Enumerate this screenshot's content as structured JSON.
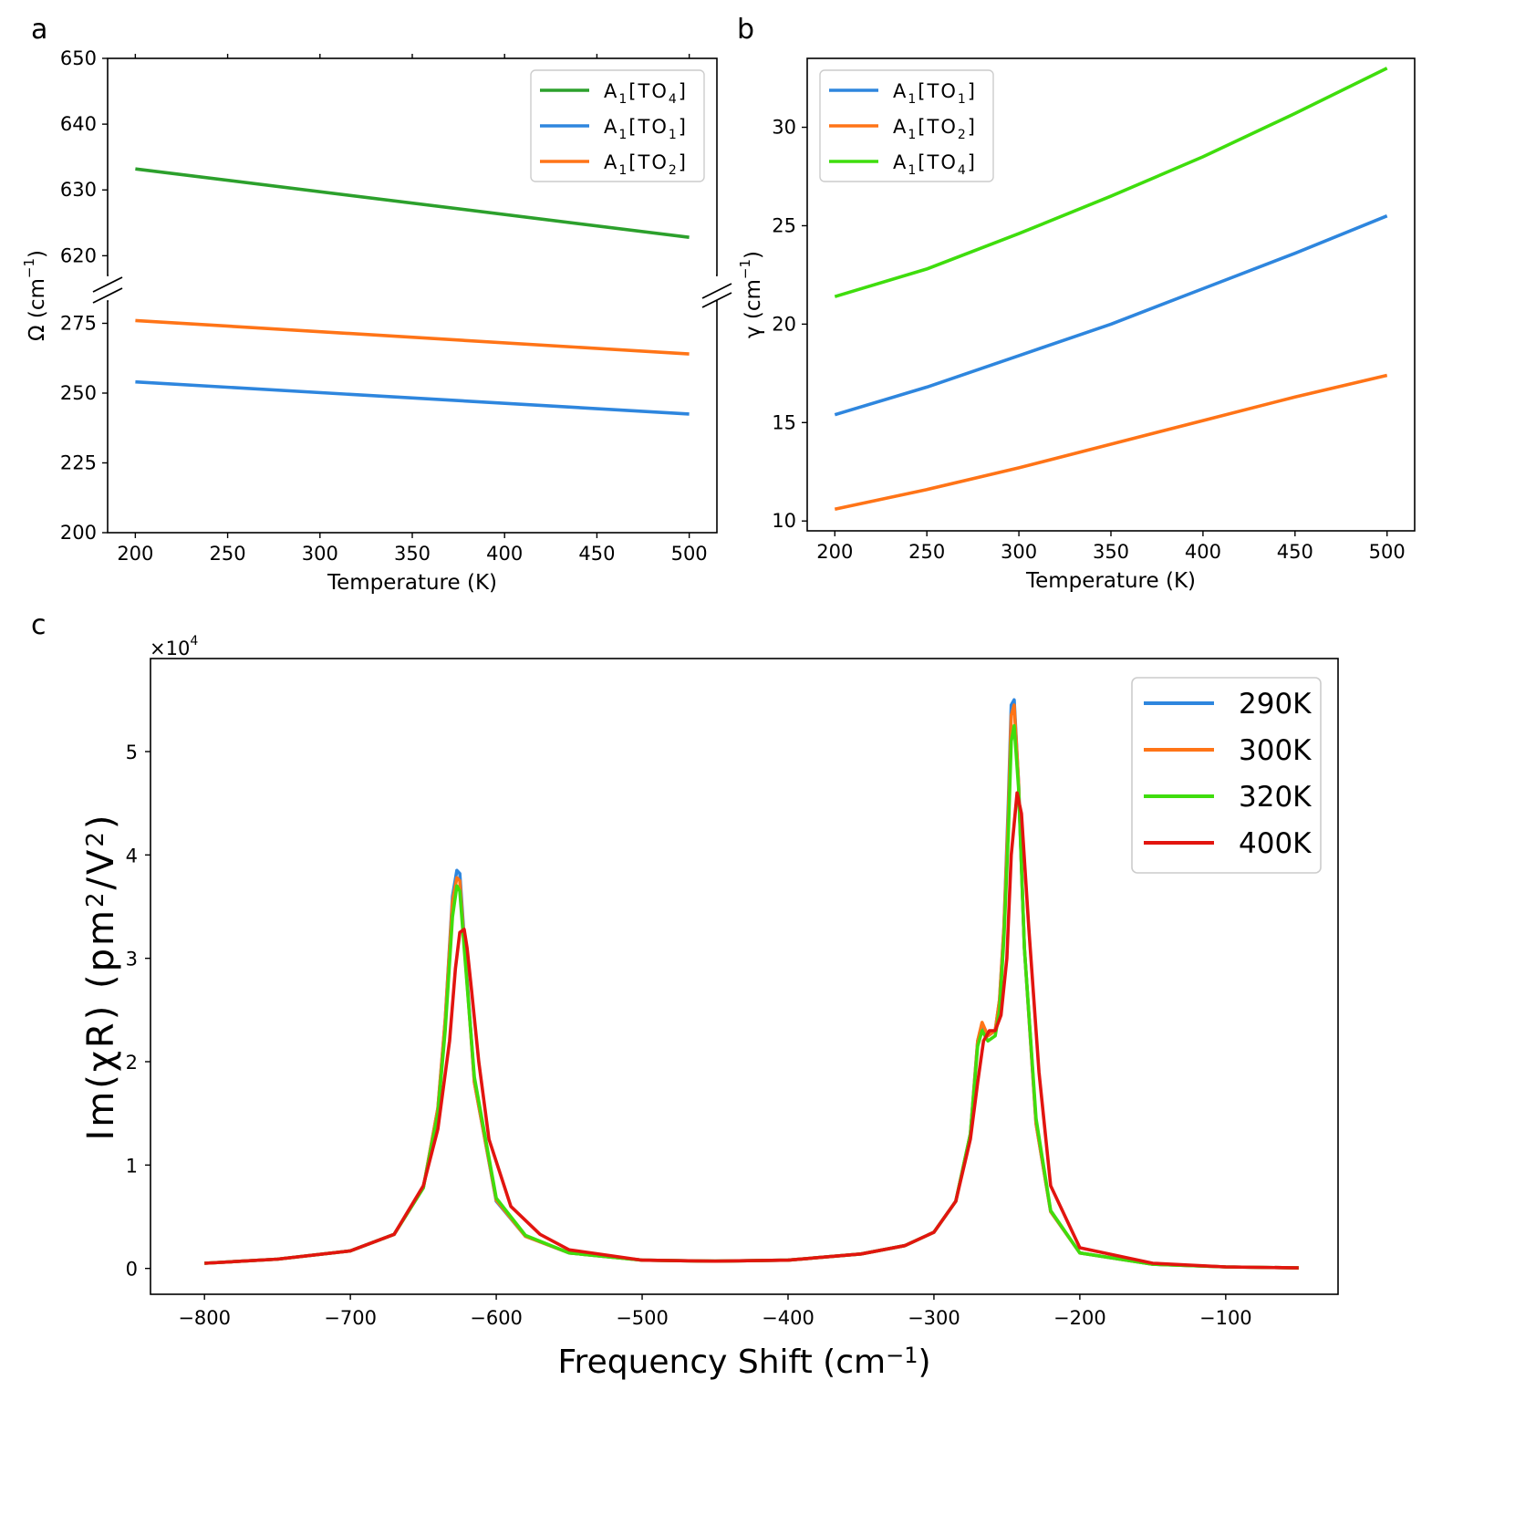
{
  "chart_data": [
    {
      "panel": "a",
      "type": "line",
      "xlabel": "Temperature (K)",
      "ylabel": "Ω (cm⁻¹)",
      "xlim": [
        185,
        515
      ],
      "x_ticks": [
        200,
        250,
        300,
        350,
        400,
        450,
        500
      ],
      "broken_y_axis": true,
      "ylim_upper": [
        617,
        650
      ],
      "ylim_lower": [
        200,
        283
      ],
      "y_ticks_upper": [
        620,
        630,
        640,
        650
      ],
      "y_ticks_lower": [
        200,
        225,
        250,
        275
      ],
      "legend_position": "top-right",
      "series": [
        {
          "name": "A₁[TO₄]",
          "color": "#2ca02c",
          "axis": "upper",
          "x": [
            200,
            500
          ],
          "y": [
            633.2,
            622.8
          ]
        },
        {
          "name": "A₁[TO₁]",
          "color": "#2e86de",
          "axis": "lower",
          "x": [
            200,
            500
          ],
          "y": [
            254.0,
            242.5
          ]
        },
        {
          "name": "A₁[TO₂]",
          "color": "#ff7417",
          "axis": "lower",
          "x": [
            200,
            500
          ],
          "y": [
            276.0,
            264.0
          ]
        }
      ]
    },
    {
      "panel": "b",
      "type": "line",
      "xlabel": "Temperature (K)",
      "ylabel": "γ (cm⁻¹)",
      "xlim": [
        185,
        515
      ],
      "ylim": [
        9.5,
        33.5
      ],
      "x_ticks": [
        200,
        250,
        300,
        350,
        400,
        450,
        500
      ],
      "y_ticks": [
        10,
        15,
        20,
        25,
        30
      ],
      "legend_position": "top-left",
      "series": [
        {
          "name": "A₁[TO₁]",
          "color": "#2e86de",
          "x": [
            200,
            250,
            300,
            350,
            400,
            450,
            500
          ],
          "y": [
            15.4,
            16.8,
            18.4,
            20.0,
            21.8,
            23.6,
            25.5
          ]
        },
        {
          "name": "A₁[TO₂]",
          "color": "#ff7417",
          "x": [
            200,
            250,
            300,
            350,
            400,
            450,
            500
          ],
          "y": [
            10.6,
            11.6,
            12.7,
            13.9,
            15.1,
            16.3,
            17.4
          ]
        },
        {
          "name": "A₁[TO₄]",
          "color": "#3fdd0d",
          "x": [
            200,
            250,
            300,
            350,
            400,
            450,
            500
          ],
          "y": [
            21.4,
            22.8,
            24.6,
            26.5,
            28.5,
            30.7,
            33.0
          ]
        }
      ]
    },
    {
      "panel": "c",
      "type": "line",
      "xlabel": "Frequency Shift (cm⁻¹)",
      "ylabel": "Im(χR) (pm²/V²)",
      "y_multiplier": "×10⁴",
      "xlim": [
        -837,
        -23
      ],
      "ylim": [
        -0.25,
        5.9
      ],
      "x_ticks": [
        -800,
        -700,
        -600,
        -500,
        -400,
        -300,
        -200,
        -100
      ],
      "y_ticks": [
        0,
        1,
        2,
        3,
        4,
        5
      ],
      "legend_position": "top-right",
      "series": [
        {
          "name": "290K",
          "color": "#2e86de",
          "x": [
            -800,
            -750,
            -700,
            -670,
            -650,
            -640,
            -635,
            -630,
            -627,
            -625,
            -622,
            -615,
            -600,
            -580,
            -550,
            -500,
            -450,
            -400,
            -350,
            -320,
            -300,
            -285,
            -275,
            -270,
            -267,
            -263,
            -258,
            -255,
            -252,
            -249,
            -247,
            -245,
            -242,
            -238,
            -230,
            -220,
            -200,
            -150,
            -100,
            -50
          ],
          "y": [
            0.05,
            0.09,
            0.17,
            0.33,
            0.78,
            1.55,
            2.4,
            3.6,
            3.85,
            3.82,
            3.2,
            1.8,
            0.65,
            0.31,
            0.15,
            0.08,
            0.07,
            0.08,
            0.14,
            0.22,
            0.35,
            0.65,
            1.3,
            2.2,
            2.35,
            2.25,
            2.3,
            2.6,
            3.3,
            4.5,
            5.45,
            5.5,
            4.7,
            3.1,
            1.4,
            0.55,
            0.15,
            0.04,
            0.015,
            0.005
          ]
        },
        {
          "name": "300K",
          "color": "#ff7417",
          "x": [
            -800,
            -750,
            -700,
            -670,
            -650,
            -640,
            -635,
            -630,
            -627,
            -625,
            -622,
            -615,
            -600,
            -580,
            -550,
            -500,
            -450,
            -400,
            -350,
            -320,
            -300,
            -285,
            -275,
            -270,
            -267,
            -263,
            -258,
            -255,
            -252,
            -249,
            -247,
            -245,
            -242,
            -238,
            -230,
            -220,
            -200,
            -150,
            -100,
            -50
          ],
          "y": [
            0.05,
            0.09,
            0.17,
            0.33,
            0.78,
            1.55,
            2.4,
            3.55,
            3.78,
            3.75,
            3.15,
            1.8,
            0.66,
            0.31,
            0.15,
            0.08,
            0.07,
            0.08,
            0.14,
            0.22,
            0.35,
            0.65,
            1.3,
            2.2,
            2.38,
            2.25,
            2.3,
            2.6,
            3.3,
            4.4,
            5.35,
            5.45,
            4.7,
            3.1,
            1.4,
            0.55,
            0.15,
            0.04,
            0.015,
            0.005
          ]
        },
        {
          "name": "320K",
          "color": "#3fdd0d",
          "x": [
            -800,
            -750,
            -700,
            -670,
            -650,
            -640,
            -635,
            -630,
            -627,
            -625,
            -622,
            -615,
            -600,
            -580,
            -550,
            -500,
            -450,
            -400,
            -350,
            -320,
            -300,
            -285,
            -275,
            -270,
            -267,
            -263,
            -258,
            -255,
            -252,
            -249,
            -247,
            -245,
            -242,
            -238,
            -230,
            -220,
            -200,
            -150,
            -100,
            -50
          ],
          "y": [
            0.05,
            0.09,
            0.17,
            0.33,
            0.78,
            1.5,
            2.3,
            3.4,
            3.7,
            3.65,
            3.1,
            1.85,
            0.68,
            0.32,
            0.15,
            0.08,
            0.07,
            0.08,
            0.14,
            0.22,
            0.35,
            0.65,
            1.3,
            2.15,
            2.3,
            2.2,
            2.25,
            2.5,
            3.2,
            4.2,
            5.1,
            5.25,
            4.65,
            3.1,
            1.45,
            0.56,
            0.15,
            0.04,
            0.015,
            0.005
          ]
        },
        {
          "name": "400K",
          "color": "#e2150f",
          "x": [
            -800,
            -750,
            -700,
            -670,
            -650,
            -640,
            -632,
            -628,
            -625,
            -622,
            -620,
            -617,
            -612,
            -605,
            -590,
            -570,
            -550,
            -500,
            -450,
            -400,
            -350,
            -320,
            -300,
            -285,
            -275,
            -270,
            -266,
            -262,
            -258,
            -254,
            -250,
            -247,
            -245,
            -243,
            -240,
            -235,
            -228,
            -220,
            -200,
            -150,
            -100,
            -50
          ],
          "y": [
            0.05,
            0.09,
            0.17,
            0.33,
            0.8,
            1.35,
            2.2,
            2.9,
            3.25,
            3.28,
            3.1,
            2.7,
            2.0,
            1.25,
            0.6,
            0.33,
            0.18,
            0.08,
            0.07,
            0.08,
            0.14,
            0.22,
            0.35,
            0.65,
            1.25,
            1.8,
            2.2,
            2.3,
            2.3,
            2.45,
            3.0,
            4.0,
            4.3,
            4.6,
            4.4,
            3.3,
            1.9,
            0.8,
            0.2,
            0.05,
            0.015,
            0.005
          ]
        }
      ]
    }
  ]
}
